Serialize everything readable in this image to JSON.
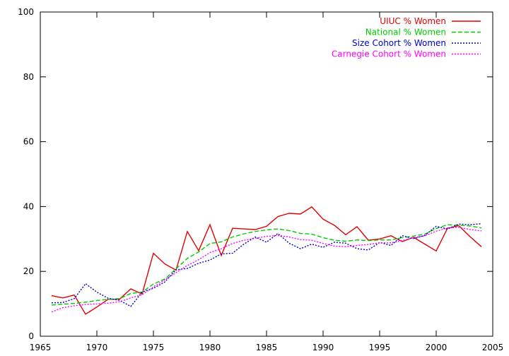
{
  "chart_data": {
    "type": "line",
    "title": "",
    "xlabel": "",
    "ylabel": "",
    "xlim": [
      1965,
      2005
    ],
    "ylim": [
      0,
      100
    ],
    "x_ticks": [
      1965,
      1970,
      1975,
      1980,
      1985,
      1990,
      1995,
      2000,
      2005
    ],
    "y_ticks": [
      0,
      20,
      40,
      60,
      80,
      100
    ],
    "grid": false,
    "legend_position": "top-right",
    "x": [
      1966,
      1967,
      1968,
      1969,
      1970,
      1971,
      1972,
      1973,
      1974,
      1975,
      1976,
      1977,
      1978,
      1979,
      1980,
      1981,
      1982,
      1983,
      1984,
      1985,
      1986,
      1987,
      1988,
      1989,
      1990,
      1991,
      1992,
      1993,
      1994,
      1995,
      1996,
      1997,
      1998,
      1999,
      2000,
      2001,
      2002,
      2003,
      2004
    ],
    "series": [
      {
        "name": "UIUC % Women",
        "color": "#e00000",
        "dash": "solid",
        "values": [
          12.5,
          11.8,
          12.7,
          6.8,
          9.0,
          11.4,
          11.4,
          14.6,
          13.0,
          25.6,
          22.3,
          20.4,
          32.3,
          26.4,
          34.4,
          24.9,
          33.3,
          33.1,
          32.9,
          33.9,
          36.9,
          37.9,
          37.7,
          39.9,
          36.1,
          34.2,
          31.3,
          33.8,
          29.6,
          30.0,
          31.0,
          29.2,
          30.5,
          28.4,
          26.3,
          33.3,
          34.1,
          30.7,
          27.6
        ]
      },
      {
        "name": "National % Women",
        "color": "#00cc00",
        "dash": "dashed",
        "values": [
          9.6,
          9.9,
          10.1,
          10.5,
          11.0,
          11.4,
          11.6,
          13.2,
          13.6,
          16.1,
          17.6,
          20.8,
          24.0,
          26.0,
          28.6,
          29.1,
          30.6,
          31.6,
          32.3,
          32.8,
          33.1,
          32.6,
          31.7,
          31.5,
          30.4,
          29.6,
          29.3,
          29.7,
          29.5,
          29.7,
          29.7,
          30.4,
          30.9,
          31.5,
          33.2,
          34.4,
          34.2,
          34.0,
          33.4
        ]
      },
      {
        "name": "Size Cohort % Women",
        "color": "#0000cc",
        "dash": "dotted",
        "values": [
          10.3,
          10.4,
          11.6,
          16.2,
          13.6,
          11.7,
          11.1,
          9.2,
          13.6,
          14.8,
          16.7,
          20.5,
          20.9,
          22.5,
          23.5,
          25.4,
          25.6,
          28.4,
          30.6,
          29.0,
          31.7,
          28.7,
          27.0,
          28.4,
          27.4,
          29.0,
          28.7,
          27.0,
          26.6,
          28.9,
          28.0,
          31.0,
          30.1,
          31.1,
          33.9,
          33.1,
          34.6,
          34.4,
          34.7
        ]
      },
      {
        "name": "Carnegie Cohort % Women",
        "color": "#ff00ff",
        "dash": "dotted",
        "values": [
          7.5,
          8.8,
          9.4,
          9.8,
          10.0,
          10.2,
          10.6,
          11.8,
          12.8,
          15.2,
          17.4,
          19.6,
          21.8,
          23.6,
          25.8,
          27.0,
          28.6,
          29.6,
          30.2,
          30.8,
          31.1,
          30.6,
          29.8,
          29.6,
          28.6,
          27.8,
          27.6,
          28.0,
          28.3,
          28.8,
          28.8,
          29.5,
          30.4,
          31.0,
          32.4,
          33.4,
          33.6,
          32.9,
          32.5
        ]
      }
    ]
  }
}
